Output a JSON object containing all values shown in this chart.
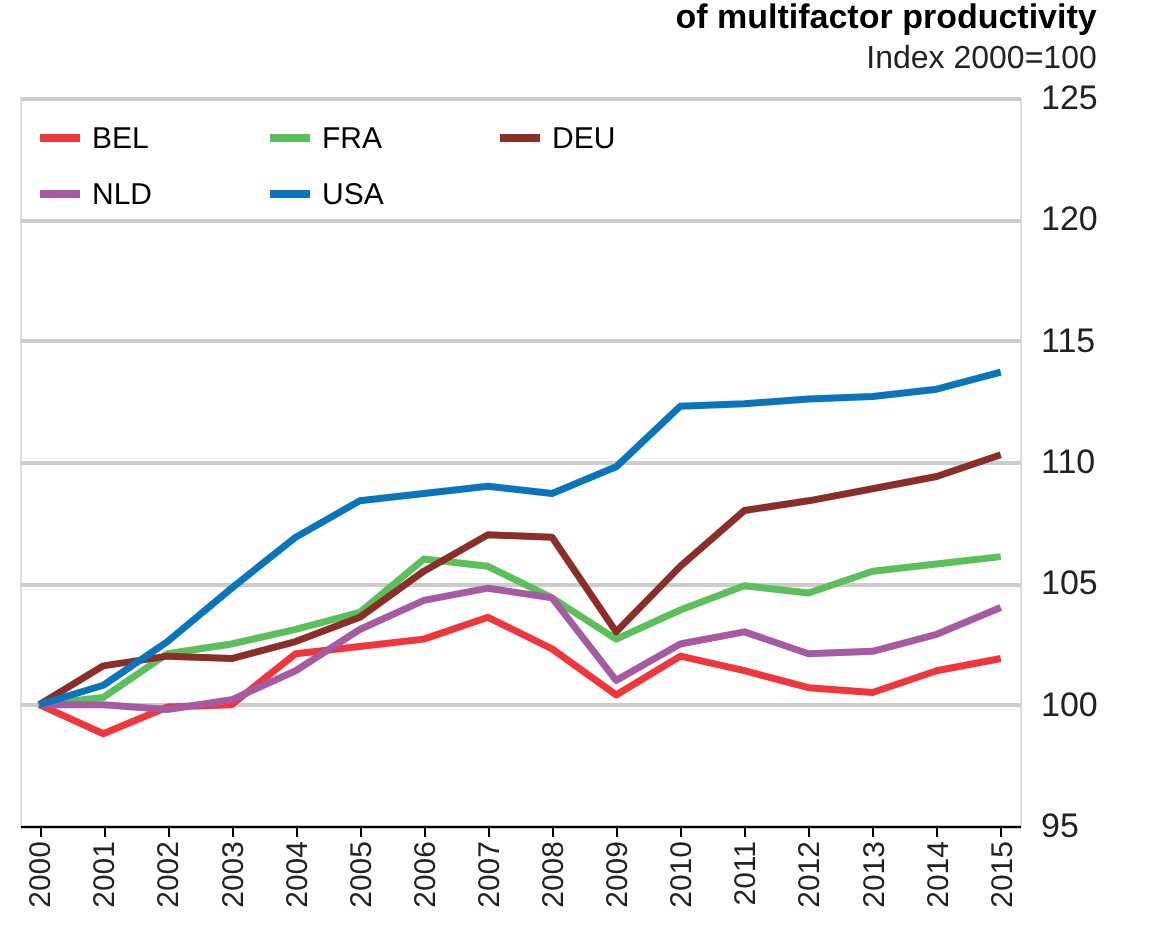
{
  "chart_data": {
    "type": "line",
    "title": "of multifactor productivity",
    "ylabel": "Index 2000=100",
    "categories": [
      "2000",
      "2001",
      "2002",
      "2003",
      "2004",
      "2005",
      "2006",
      "2007",
      "2008",
      "2009",
      "2010",
      "2011",
      "2012",
      "2013",
      "2014",
      "2015"
    ],
    "series": [
      {
        "name": "BEL",
        "color": "#f0353b",
        "values": [
          100,
          98.8,
          99.9,
          100.0,
          102.1,
          102.4,
          102.7,
          103.6,
          102.3,
          100.4,
          102.0,
          101.4,
          100.7,
          100.5,
          101.4,
          101.9
        ]
      },
      {
        "name": "FRA",
        "color": "#5bbf5a",
        "values": [
          100,
          100.3,
          102.1,
          102.5,
          103.1,
          103.8,
          106.0,
          105.7,
          104.4,
          102.7,
          103.9,
          104.9,
          104.6,
          105.5,
          105.8,
          106.1
        ]
      },
      {
        "name": "DEU",
        "color": "#8b2e2a",
        "values": [
          100,
          101.6,
          102.0,
          101.9,
          102.6,
          103.6,
          105.5,
          107.0,
          106.9,
          103.0,
          105.7,
          108.0,
          108.4,
          108.9,
          109.4,
          110.3
        ]
      },
      {
        "name": "NLD",
        "color": "#a65aa2",
        "values": [
          100,
          100.0,
          99.8,
          100.2,
          101.4,
          103.1,
          104.3,
          104.8,
          104.4,
          101.0,
          102.5,
          103.0,
          102.1,
          102.2,
          102.9,
          104.0
        ]
      },
      {
        "name": "USA",
        "color": "#0a75bd",
        "values": [
          100,
          100.8,
          102.6,
          104.8,
          106.9,
          108.4,
          108.7,
          109.0,
          108.7,
          109.8,
          112.3,
          112.4,
          112.6,
          112.7,
          113.0,
          113.7
        ]
      }
    ],
    "ylim": [
      95,
      125
    ],
    "yticks": [
      95,
      100,
      105,
      110,
      115,
      120,
      125
    ],
    "grid": "y",
    "legend": "top left",
    "marker": "none",
    "line_style": "solid"
  }
}
